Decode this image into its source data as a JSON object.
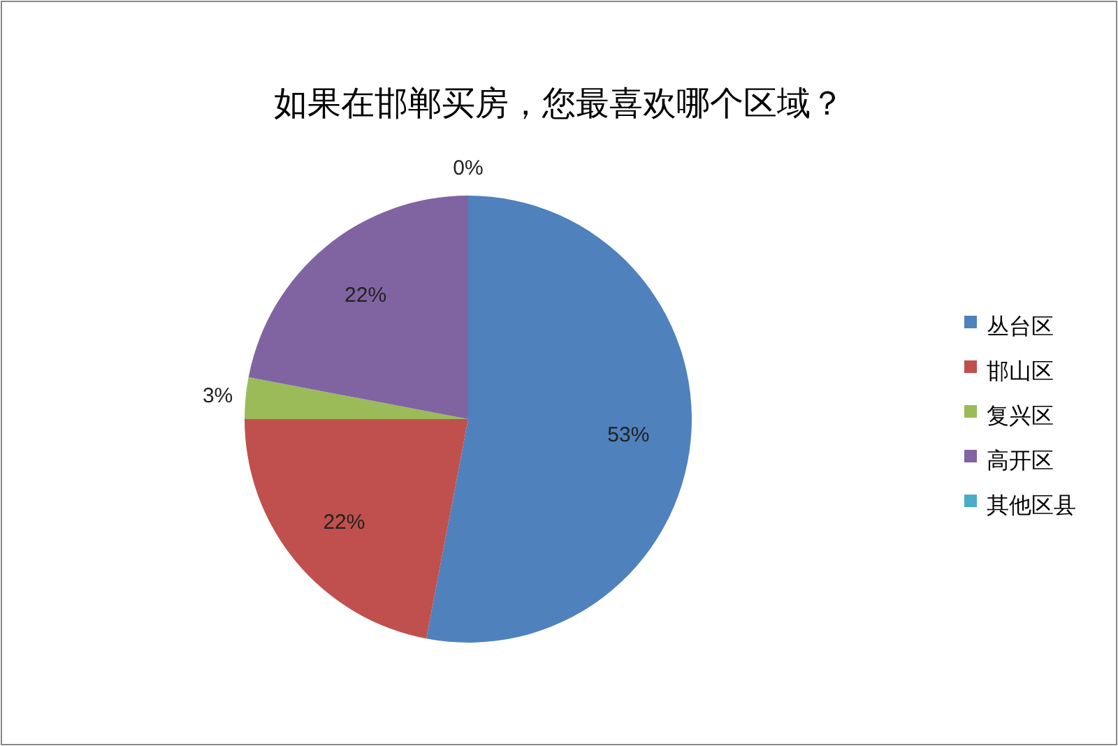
{
  "chart_data": {
    "type": "pie",
    "title": "如果在邯郸买房，您最喜欢哪个区域？",
    "categories": [
      "丛台区",
      "邯山区",
      "复兴区",
      "高开区",
      "其他区县"
    ],
    "values": [
      53,
      22,
      3,
      22,
      0
    ],
    "colors": [
      "#4f81bd",
      "#c0504d",
      "#9bbb59",
      "#8064a2",
      "#4bacc6"
    ],
    "value_labels": [
      "53%",
      "22%",
      "3%",
      "22%",
      "0%"
    ],
    "legend": "right"
  }
}
